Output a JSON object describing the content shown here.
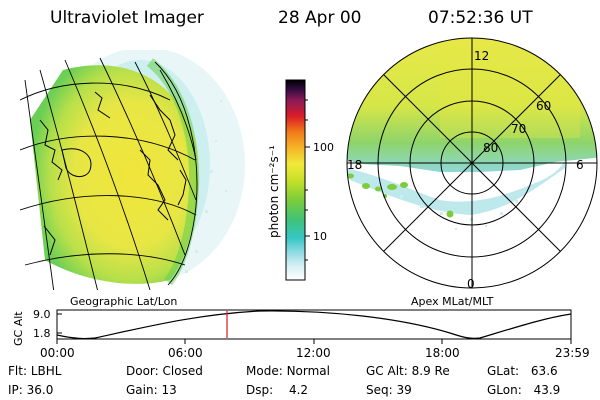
{
  "header": {
    "title": "Ultraviolet Imager",
    "date": "28 Apr 00",
    "time": "07:52:36 UT"
  },
  "colorbar": {
    "unit": "photon cm⁻²s⁻¹",
    "ticks": [
      "100",
      "10"
    ]
  },
  "left_panel": {
    "label": "Geographic Lat/Lon"
  },
  "right_panel": {
    "label": "Apex MLat/MLT",
    "mlt_labels": [
      "12",
      "18",
      "6",
      "0"
    ],
    "lat_labels": [
      "60",
      "70",
      "80"
    ]
  },
  "timeline": {
    "axis_label": "GC Alt",
    "y_ticks": [
      "9.0",
      "1.8"
    ],
    "x_ticks": [
      "00:00",
      "06:00",
      "12:00",
      "18:00",
      "23:59"
    ],
    "marker_time": "07:52"
  },
  "footer": [
    [
      {
        "label": "Flt:",
        "value": "LBHL"
      },
      {
        "label": "Door:",
        "value": "Closed"
      },
      {
        "label": "Mode:",
        "value": "Normal"
      },
      {
        "label": "GC Alt:",
        "value": "8.9 Re"
      },
      {
        "label": "GLat:",
        "value": "63.6"
      }
    ],
    [
      {
        "label": "IP:",
        "value": "36.0"
      },
      {
        "label": "Gain:",
        "value": "13"
      },
      {
        "label": "Dsp:",
        "value": "4.2"
      },
      {
        "label": "Seq:",
        "value": "39"
      },
      {
        "label": "GLon:",
        "value": "43.9"
      }
    ]
  ]
}
